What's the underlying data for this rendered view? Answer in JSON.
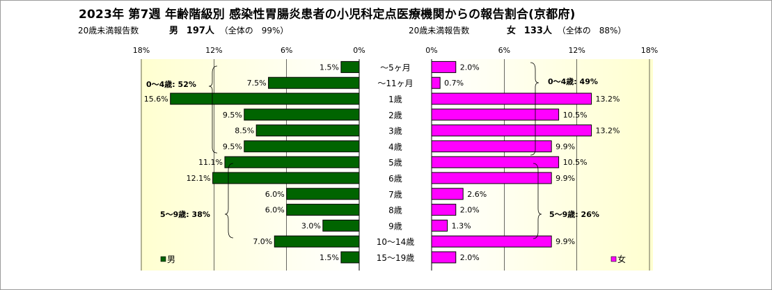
{
  "chart_data": {
    "type": "bar",
    "title": "2023年 第7週  年齢階級別 感染性胃腸炎患者の小児科定点医療機関からの報告割合(京都府)",
    "categories": [
      "～5ヶ月",
      "～11ヶ月",
      "1歳",
      "2歳",
      "3歳",
      "4歳",
      "5歳",
      "6歳",
      "7歳",
      "8歳",
      "9歳",
      "10～14歳",
      "15～19歳"
    ],
    "series": [
      {
        "name": "男",
        "color": "#006400",
        "values": [
          1.5,
          7.5,
          15.6,
          9.5,
          8.5,
          9.5,
          11.1,
          12.1,
          6.0,
          6.0,
          3.0,
          7.0,
          1.5
        ],
        "labels": [
          "1.5%",
          "7.5%",
          "15.6%",
          "9.5%",
          "8.5%",
          "9.5%",
          "11.1%",
          "12.1%",
          "6.0%",
          "6.0%",
          "3.0%",
          "7.0%",
          "1.5%"
        ]
      },
      {
        "name": "女",
        "color": "#ff00ff",
        "values": [
          2.0,
          0.7,
          13.2,
          10.5,
          13.2,
          9.9,
          10.5,
          9.9,
          2.6,
          2.0,
          1.3,
          9.9,
          2.0
        ],
        "labels": [
          "2.0%",
          "0.7%",
          "13.2%",
          "10.5%",
          "13.2%",
          "9.9%",
          "10.5%",
          "9.9%",
          "2.6%",
          "2.0%",
          "1.3%",
          "9.9%",
          "2.0%"
        ]
      }
    ],
    "xlim": [
      0,
      18
    ],
    "ticks": [
      0,
      6,
      12,
      18
    ],
    "tick_labels_left": [
      "18%",
      "12%",
      "6%",
      "0%"
    ],
    "tick_labels_right": [
      "0%",
      "6%",
      "12%",
      "18%"
    ],
    "grid": true,
    "annotations": {
      "male_0_4": "0～4歳: 52%",
      "male_5_9": "5～9歳: 38%",
      "female_0_4": "0～4歳: 49%",
      "female_5_9": "5～9歳: 26%"
    },
    "legend_placement": "bottom-left / bottom-right"
  },
  "header": {
    "male_count_label": "20歳未満報告数",
    "male_sex": "男",
    "male_count": "197人",
    "male_share": "（全体の　99%）",
    "female_count_label": "20歳未満報告数",
    "female_sex": "女",
    "female_count": "133人",
    "female_share": "（全体の　88%）"
  },
  "colors": {
    "male": "#006400",
    "female": "#ff00ff",
    "plot_bg_edge": "#ffffe0"
  }
}
